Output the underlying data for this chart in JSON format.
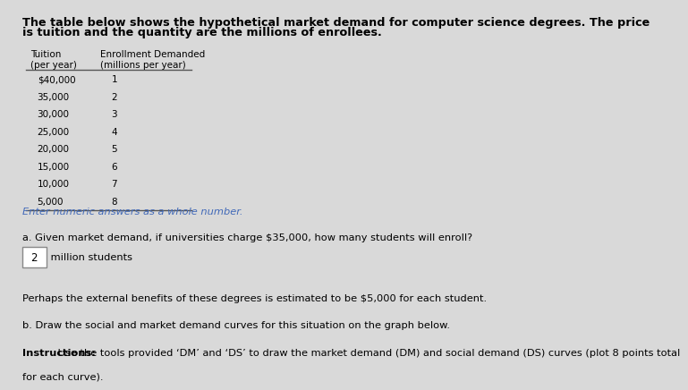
{
  "title_line1": "The table below shows the hypothetical market demand for computer science degrees. The price",
  "title_line2": "is tuition and the quantity are the millions of enrollees.",
  "tuition": [
    "$40,000",
    "35,000",
    "30,000",
    "25,000",
    "20,000",
    "15,000",
    "10,000",
    "5,000"
  ],
  "enrollment": [
    "1",
    "2",
    "3",
    "4",
    "5",
    "6",
    "7",
    "8"
  ],
  "enter_numeric_text": "Enter numeric answers as a whole number.",
  "question_a": "a. Given market demand, if universities charge $35,000, how many students will enroll?",
  "answer_box_value": "2",
  "answer_suffix": " million students",
  "external_benefits_text": "Perhaps the external benefits of these degrees is estimated to be $5,000 for each student.",
  "question_b": "b. Draw the social and market demand curves for this situation on the graph below.",
  "instructions_bold": "Instructions:",
  "instructions_text": " Use the tools provided ‘DM’ and ‘DS’ to draw the market demand (DM) and social demand (DS) curves (plot 8 points total",
  "instructions_text2": "for each curve).",
  "bg_color": "#d9d9d9",
  "text_color": "#000000",
  "blue_text_color": "#4169b8",
  "table_line_color": "#555555"
}
